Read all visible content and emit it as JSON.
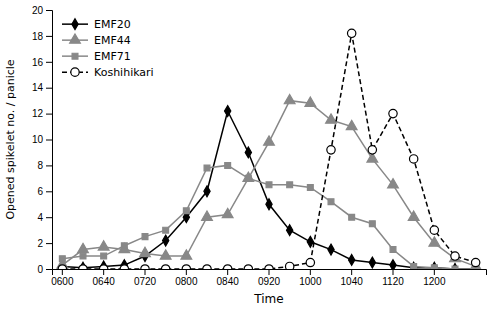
{
  "chart_data": {
    "type": "line",
    "xlabel": "Time",
    "ylabel": "Opened spikelet no. / panicle",
    "categories": [
      "0600",
      null,
      "0640",
      null,
      "0720",
      null,
      "0800",
      null,
      "0840",
      null,
      "0920",
      null,
      "1000",
      null,
      "1040",
      null,
      "1120",
      null,
      "1200",
      null,
      null
    ],
    "ylim": [
      0,
      20
    ],
    "yticks": [
      0,
      2,
      4,
      6,
      8,
      10,
      12,
      14,
      16,
      18,
      20
    ],
    "grid": false,
    "legend": "upper left",
    "series": [
      {
        "name": "EMF20",
        "color": "#000000",
        "marker": "diamond",
        "line_style": "solid",
        "values": [
          0.2,
          0.1,
          0.2,
          0.3,
          1.0,
          2.2,
          4.0,
          6.0,
          12.2,
          9.0,
          5.0,
          3.0,
          2.1,
          1.5,
          0.7,
          0.5,
          0.3,
          0.1,
          0.1,
          0.0,
          0.0
        ]
      },
      {
        "name": "EMF44",
        "color": "#888888",
        "marker": "triangle",
        "line_style": "solid",
        "values": [
          0.3,
          1.5,
          1.7,
          1.5,
          1.2,
          1.0,
          1.0,
          4.0,
          4.2,
          7.0,
          9.8,
          13.0,
          12.8,
          11.5,
          11.0,
          8.5,
          6.5,
          4.0,
          2.0,
          0.8,
          0.2
        ]
      },
      {
        "name": "EMF71",
        "color": "#888888",
        "marker": "square",
        "line_style": "solid",
        "values": [
          0.8,
          1.0,
          1.0,
          1.8,
          2.5,
          3.0,
          4.5,
          7.8,
          8.0,
          7.0,
          6.5,
          6.5,
          6.3,
          5.2,
          4.0,
          3.5,
          1.5,
          0.2,
          0.1,
          0.0,
          0.0
        ]
      },
      {
        "name": "Koshihikari",
        "color": "#000000",
        "marker": "circle-open",
        "line_style": "dashed",
        "values": [
          0.0,
          0.0,
          0.0,
          0.0,
          0.0,
          0.0,
          0.0,
          0.0,
          0.0,
          0.0,
          0.0,
          0.2,
          0.5,
          9.2,
          18.2,
          9.2,
          12.0,
          8.5,
          3.0,
          1.0,
          0.5
        ]
      }
    ]
  }
}
